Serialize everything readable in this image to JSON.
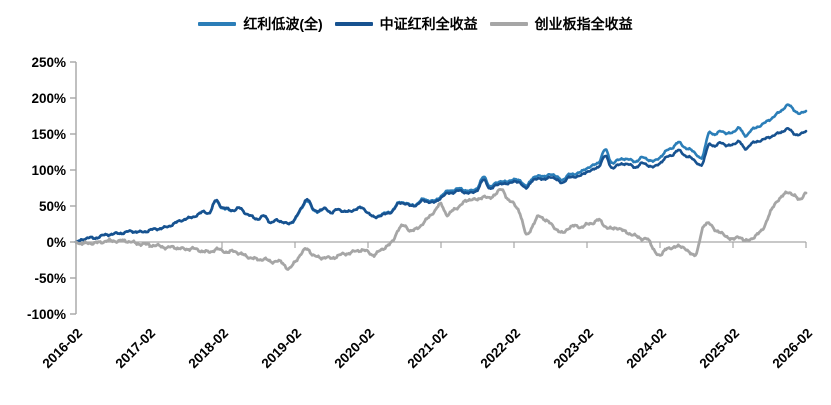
{
  "figure": {
    "background": "#FFFFFF"
  },
  "legend": {
    "position": "top-center",
    "items": [
      {
        "label": "红利低波(全)",
        "color": "#2B7EB8"
      },
      {
        "label": "中证红利全收益",
        "color": "#175290"
      },
      {
        "label": "创业板指全收益",
        "color": "#A6A6A6"
      }
    ]
  },
  "chart_data": {
    "type": "line",
    "title": "",
    "xlabel": "",
    "ylabel": "",
    "x_start": "2016-02",
    "x_end": "2026-02",
    "x_frequency": "monthly",
    "x_tick_labels": [
      "2016-02",
      "2017-02",
      "2018-02",
      "2019-02",
      "2020-02",
      "2021-02",
      "2022-02",
      "2023-02",
      "2024-02",
      "2025-02",
      "2026-02"
    ],
    "x_tick_every_n_points": 12,
    "y_tick_labels": [
      "250%",
      "200%",
      "150%",
      "100%",
      "50%",
      "0%",
      "-50%",
      "-100%"
    ],
    "y_tick_values": [
      250,
      200,
      150,
      100,
      50,
      0,
      -50,
      -100
    ],
    "ylim": [
      -100,
      250
    ],
    "y_unit": "%",
    "grid": "none",
    "zero_line": true,
    "axis_color": "#A6A6A6",
    "text_color": "#000000",
    "legend_position": "top",
    "series": [
      {
        "name": "红利低波(全)",
        "color": "#2B7EB8",
        "stroke_width": 2.6,
        "values": [
          0,
          3,
          6,
          5,
          8,
          10,
          11,
          12,
          13,
          15,
          14,
          14,
          16,
          18,
          19,
          21,
          25,
          29,
          32,
          34,
          38,
          42,
          41,
          57,
          47,
          45,
          44,
          47,
          39,
          35,
          32,
          36,
          27,
          30,
          28,
          25,
          32,
          45,
          58,
          44,
          43,
          46,
          41,
          45,
          43,
          42,
          46,
          47,
          41,
          34,
          38,
          40,
          44,
          54,
          55,
          51,
          53,
          59,
          58,
          57,
          64,
          70,
          72,
          74,
          72,
          71,
          76,
          90,
          78,
          81,
          85,
          83,
          88,
          84,
          79,
          87,
          93,
          90,
          95,
          90,
          87,
          93,
          95,
          97,
          103,
          106,
          112,
          128,
          111,
          113,
          116,
          114,
          112,
          117,
          115,
          112,
          118,
          126,
          131,
          138,
          132,
          128,
          122,
          118,
          152,
          148,
          155,
          150,
          153,
          158,
          148,
          155,
          160,
          164,
          170,
          176,
          183,
          190,
          184,
          178,
          182
        ]
      },
      {
        "name": "中证红利全收益",
        "color": "#175290",
        "stroke_width": 2.6,
        "values": [
          0,
          3,
          6,
          5,
          8,
          10,
          11,
          12,
          13,
          15,
          14,
          14,
          16,
          18,
          19,
          21,
          25,
          29,
          32,
          34,
          38,
          42,
          41,
          58,
          48,
          46,
          44,
          47,
          39,
          35,
          32,
          36,
          27,
          30,
          28,
          25,
          33,
          46,
          60,
          45,
          44,
          46,
          41,
          45,
          43,
          42,
          46,
          47,
          41,
          34,
          37,
          39,
          43,
          53,
          54,
          50,
          52,
          57,
          56,
          55,
          62,
          67,
          69,
          71,
          69,
          68,
          73,
          86,
          75,
          78,
          82,
          80,
          85,
          81,
          76,
          84,
          89,
          86,
          91,
          86,
          83,
          89,
          91,
          92,
          98,
          100,
          106,
          119,
          104,
          106,
          109,
          107,
          104,
          109,
          107,
          104,
          110,
          117,
          121,
          127,
          121,
          117,
          111,
          108,
          136,
          132,
          139,
          133,
          136,
          139,
          130,
          136,
          140,
          142,
          146,
          149,
          153,
          157,
          151,
          149,
          154
        ]
      },
      {
        "name": "创业板指全收益",
        "color": "#A6A6A6",
        "stroke_width": 2.8,
        "values": [
          0,
          -3,
          -1,
          -2,
          0,
          1,
          2,
          1,
          2,
          0,
          -2,
          -3,
          -4,
          -5,
          -6,
          -8,
          -7,
          -9,
          -10,
          -9,
          -11,
          -13,
          -14,
          -10,
          -12,
          -14,
          -13,
          -16,
          -20,
          -22,
          -25,
          -23,
          -28,
          -26,
          -30,
          -37,
          -28,
          -16,
          -10,
          -18,
          -22,
          -21,
          -23,
          -19,
          -17,
          -15,
          -13,
          -11,
          -14,
          -18,
          -12,
          -6,
          0,
          18,
          22,
          16,
          18,
          26,
          34,
          44,
          52,
          38,
          44,
          50,
          56,
          60,
          58,
          64,
          60,
          68,
          72,
          60,
          52,
          40,
          10,
          22,
          35,
          32,
          25,
          18,
          12,
          20,
          22,
          21,
          24,
          27,
          30,
          22,
          18,
          20,
          15,
          12,
          8,
          5,
          3,
          -10,
          -20,
          -8,
          -10,
          -4,
          -10,
          -14,
          -17,
          20,
          25,
          18,
          12,
          8,
          3,
          8,
          1,
          5,
          10,
          20,
          38,
          55,
          62,
          70,
          64,
          60,
          68
        ]
      }
    ]
  }
}
